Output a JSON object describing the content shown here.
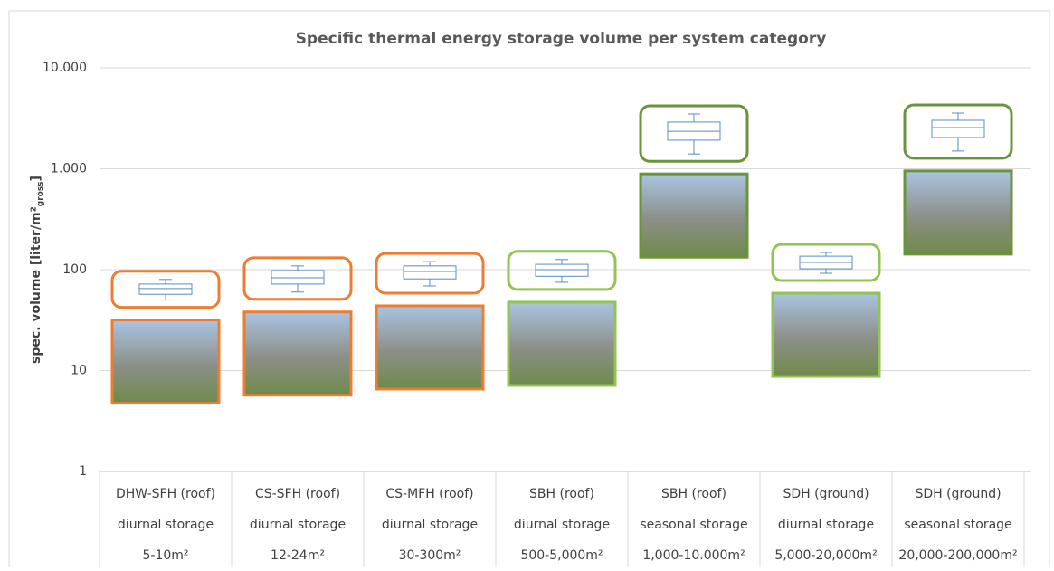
{
  "chart_data": {
    "type": "box",
    "title": "Specific thermal energy storage volume per system category",
    "y_label": "spec. volume [liter/m²",
    "y_label_subscript": "gross",
    "y_label_end": "]",
    "y_log": true,
    "ylim": [
      1,
      10000
    ],
    "yticks": [
      1,
      10,
      100,
      {
        "value": 1000,
        "label": "1.000"
      },
      {
        "value": 10000,
        "label": "10.000"
      }
    ],
    "grid": true,
    "box_color": "#5b8ac6",
    "categories": [
      [
        "DHW-SFH (roof)",
        "diurnal storage",
        "5-10m²"
      ],
      [
        "CS-SFH (roof)",
        "diurnal storage",
        "12-24m²"
      ],
      [
        "CS-MFH (roof)",
        "diurnal storage",
        "30-300m²"
      ],
      [
        "SBH (roof)",
        "diurnal storage",
        "500-5,000m²"
      ],
      [
        "SBH (roof)",
        "seasonal storage",
        "1,000-10.000m²"
      ],
      [
        "SDH (ground)",
        "diurnal storage",
        "5,000-20,000m²"
      ],
      [
        "SDH (ground)",
        "seasonal storage",
        "20,000-200,000m²"
      ]
    ],
    "frame_colors": [
      "#ed7d31",
      "#ed7d31",
      "#ed7d31",
      "#92c353",
      "#6a9438",
      "#92c353",
      "#6a9438"
    ],
    "boxes": [
      {
        "whisker_low": 50,
        "q1": 57,
        "median": 65,
        "q3": 72,
        "whisker_high": 80
      },
      {
        "whisker_low": 60,
        "q1": 72,
        "median": 83,
        "q3": 98,
        "whisker_high": 109
      },
      {
        "whisker_low": 69,
        "q1": 81,
        "median": 96,
        "q3": 109,
        "whisker_high": 120
      },
      {
        "whisker_low": 75,
        "q1": 86,
        "median": 100,
        "q3": 113,
        "whisker_high": 126
      },
      {
        "whisker_low": 1400,
        "q1": 1920,
        "median": 2350,
        "q3": 2900,
        "whisker_high": 3490
      },
      {
        "whisker_low": 92,
        "q1": 102,
        "median": 118,
        "q3": 136,
        "whisker_high": 148
      },
      {
        "whisker_low": 1500,
        "q1": 2040,
        "median": 2560,
        "q3": 3020,
        "whisker_high": 3560
      }
    ]
  }
}
